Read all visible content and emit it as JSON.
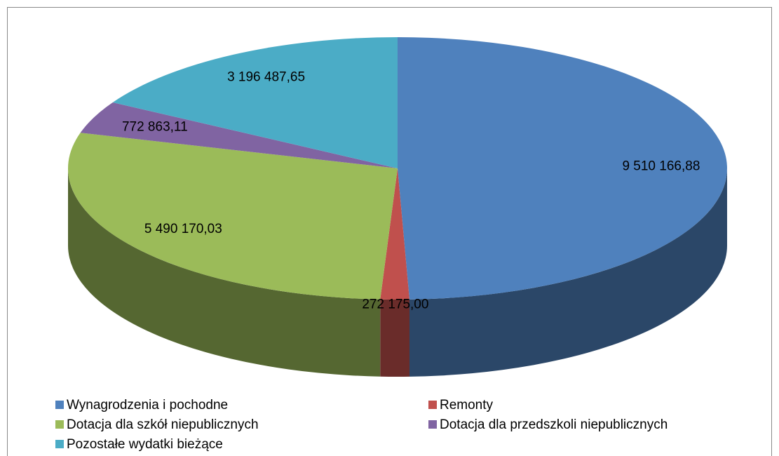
{
  "chart_data": {
    "type": "pie3d",
    "categories": [
      "Wynagrodzenia i pochodne",
      "Remonty",
      "Dotacja dla szkół niepublicznych",
      "Dotacja dla przedszkoli niepublicznych",
      "Pozostałe wydatki bieżące"
    ],
    "values": [
      9510166.88,
      272175.0,
      5490170.03,
      772863.11,
      3196487.65
    ],
    "value_labels": [
      "9 510 166,88",
      "272 175,00",
      "5 490 170,03",
      "772 863,11",
      "3 196 487,65"
    ],
    "colors": [
      "#4f81bd",
      "#c0504d",
      "#9bbb59",
      "#8064a2",
      "#4bacc6"
    ],
    "legend": "bottom"
  }
}
